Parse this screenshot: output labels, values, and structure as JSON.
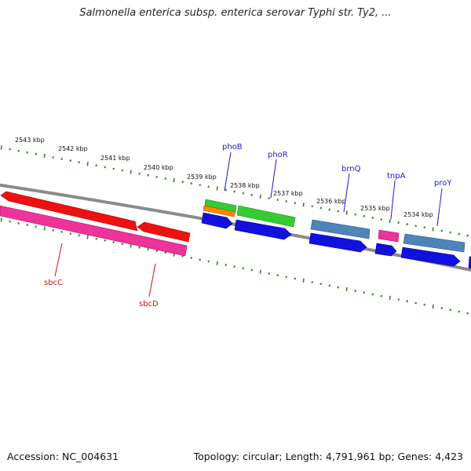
{
  "title": "Salmonella enterica subsp. enterica serovar Typhi str. Ty2, ...",
  "footer": {
    "accession": "Accession: NC_004631",
    "topology": "Topology: circular; Length: 4,791,961 bp; Genes: 4,423"
  },
  "colors": {
    "backbone": "#8a8a8a",
    "tick": "#2a8a1a",
    "forward_label": "#1a1acc",
    "reverse_label": "#cc1111",
    "red": "#ee1111",
    "pink": "#ee3399",
    "green": "#33cc33",
    "orange": "#ff8800",
    "blue": "#1111dd",
    "steelblue": "#4f84b8"
  },
  "scale_labels": [
    {
      "kbp": 2543,
      "label": "2543 kbp"
    },
    {
      "kbp": 2542,
      "label": "2542 kbp"
    },
    {
      "kbp": 2541,
      "label": "2541 kbp"
    },
    {
      "kbp": 2540,
      "label": "2540 kbp"
    },
    {
      "kbp": 2539,
      "label": "2539 kbp"
    },
    {
      "kbp": 2538,
      "label": "2538 kbp"
    },
    {
      "kbp": 2537,
      "label": "2537 kbp"
    },
    {
      "kbp": 2536,
      "label": "2536 kbp"
    },
    {
      "kbp": 2535,
      "label": "2535 kbp"
    },
    {
      "kbp": 2534,
      "label": "2534 kbp"
    }
  ],
  "genes": [
    {
      "name": "sbcC",
      "strand": "reverse",
      "labeled": true
    },
    {
      "name": "sbcD",
      "strand": "reverse",
      "labeled": true
    },
    {
      "name": "phoB",
      "strand": "forward",
      "labeled": true
    },
    {
      "name": "phoR",
      "strand": "forward",
      "labeled": true
    },
    {
      "name": "brnQ",
      "strand": "forward",
      "labeled": true
    },
    {
      "name": "tnpA",
      "strand": "forward",
      "labeled": true
    },
    {
      "name": "proY",
      "strand": "forward",
      "labeled": true
    }
  ]
}
